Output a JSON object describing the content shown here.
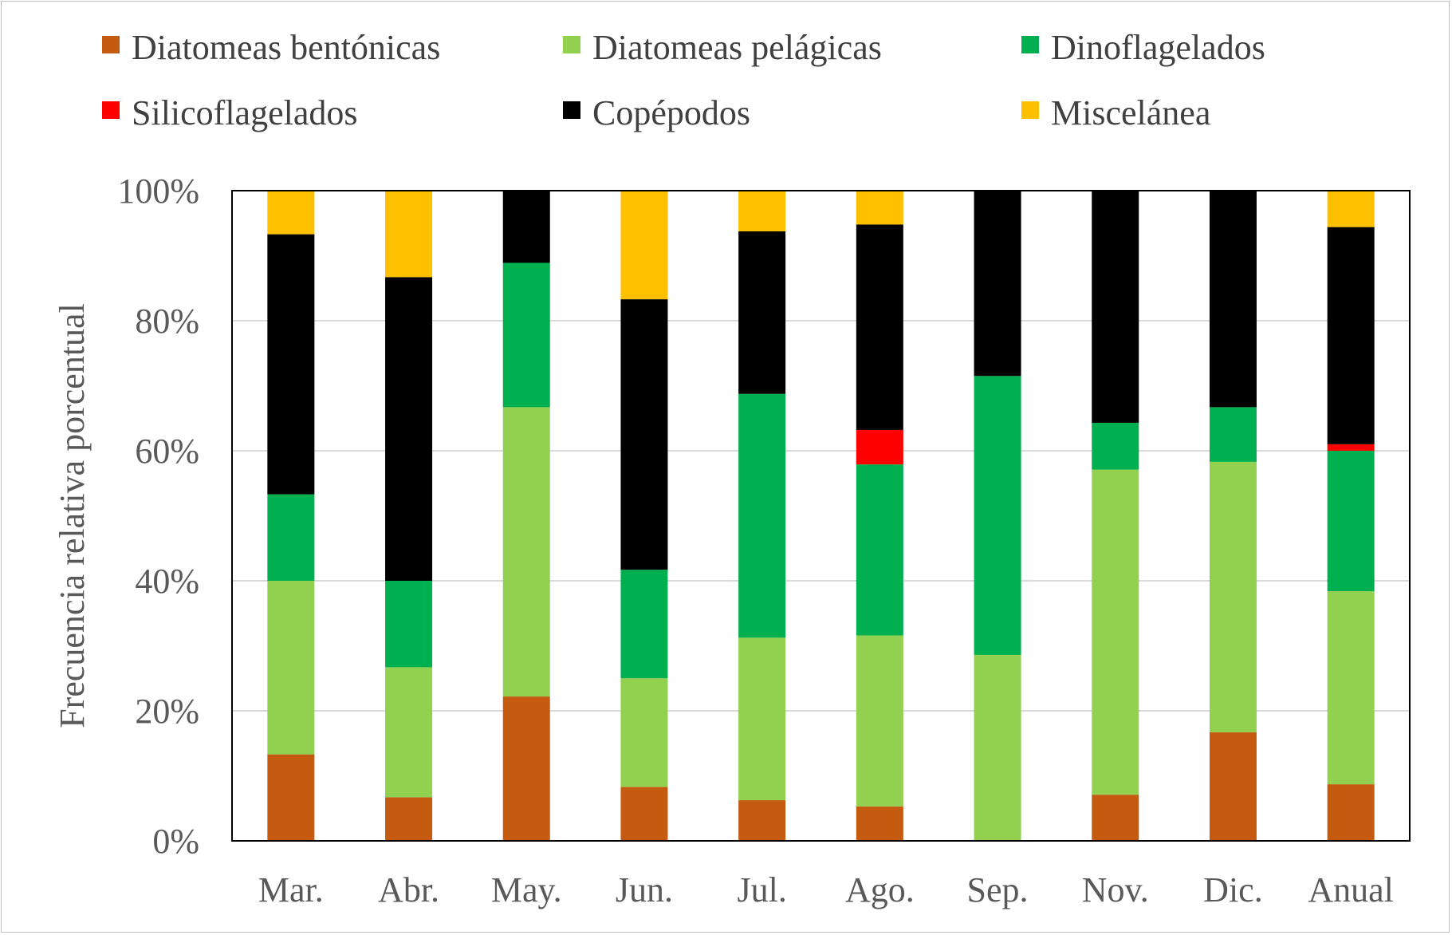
{
  "chart_data": {
    "type": "bar",
    "stacked": true,
    "ylabel": "Frecuencia relativa porcentual",
    "xlabel": "",
    "ylim": [
      0,
      100
    ],
    "yticks": [
      "0%",
      "20%",
      "40%",
      "60%",
      "80%",
      "100%"
    ],
    "grid": true,
    "legend_position": "top",
    "categories": [
      "Mar.",
      "Abr.",
      "May.",
      "Jun.",
      "Jul.",
      "Ago.",
      "Sep.",
      "Nov.",
      "Dic.",
      "Anual"
    ],
    "series": [
      {
        "name": "Diatomeas bentónicas",
        "color": "#c55a11",
        "values": [
          13.3,
          6.7,
          22.2,
          8.3,
          6.25,
          5.3,
          0,
          7.1,
          16.7,
          8.7
        ]
      },
      {
        "name": "Diatomeas pelágicas",
        "color": "#92d050",
        "values": [
          26.7,
          20.0,
          44.5,
          16.7,
          25.0,
          26.3,
          28.6,
          50.0,
          41.6,
          29.7
        ]
      },
      {
        "name": "Dinoflagelados",
        "color": "#00b050",
        "values": [
          13.3,
          13.3,
          22.2,
          16.7,
          37.5,
          26.3,
          42.9,
          7.2,
          8.4,
          21.6
        ]
      },
      {
        "name": "Silicoflagelados",
        "color": "#ff0000",
        "values": [
          0,
          0,
          0,
          0,
          0,
          5.3,
          0,
          0,
          0,
          1.0
        ]
      },
      {
        "name": "Copépodos",
        "color": "#000000",
        "values": [
          40.0,
          46.7,
          11.1,
          41.6,
          25.0,
          31.6,
          28.5,
          35.7,
          33.3,
          33.4
        ]
      },
      {
        "name": "Miscelánea",
        "color": "#ffc000",
        "values": [
          6.7,
          13.3,
          0,
          16.7,
          6.25,
          5.2,
          0,
          0,
          0,
          5.6
        ]
      }
    ]
  }
}
